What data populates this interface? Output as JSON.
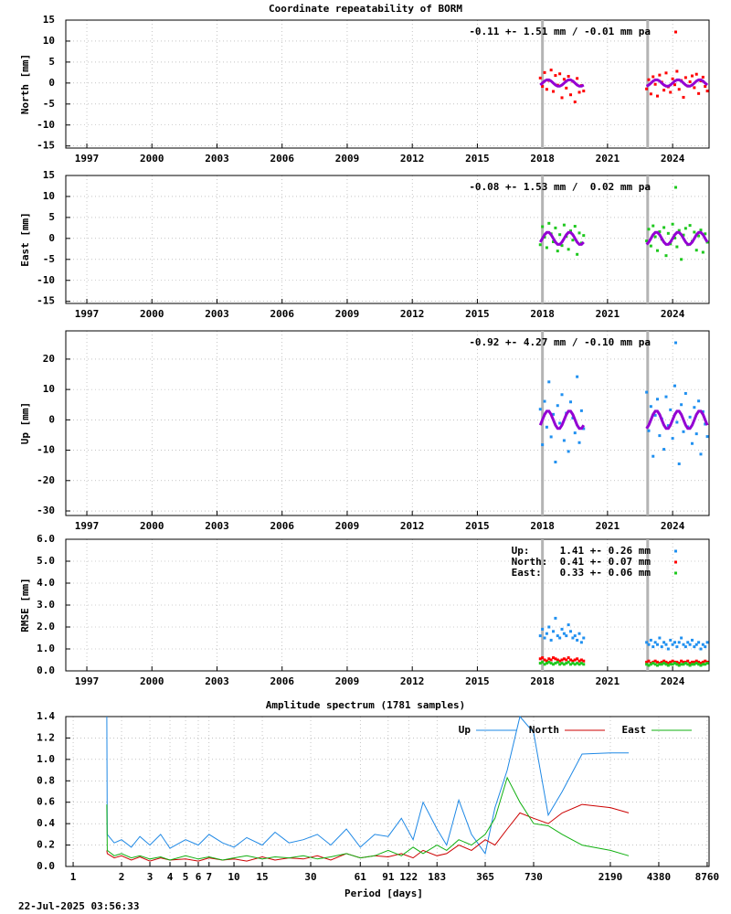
{
  "chart_data": [
    {
      "type": "scatter",
      "title": "Coordinate repeatability of BORM",
      "ylabel": "North [mm]",
      "xlim": [
        1996.03,
        2025.68
      ],
      "xticks": [
        1997,
        2000,
        2003,
        2006,
        2009,
        2012,
        2015,
        2018,
        2021,
        2024
      ],
      "ylim": [
        -15.5,
        15
      ],
      "yticks": [
        -15,
        -10,
        -5,
        0,
        5,
        10,
        15
      ],
      "grid": true,
      "vlines": [
        2018.0,
        2022.85
      ],
      "x": [
        2017.9,
        2018.0,
        2018.1,
        2018.2,
        2018.3,
        2018.4,
        2018.5,
        2018.6,
        2018.7,
        2018.8,
        2018.9,
        2019.0,
        2019.1,
        2019.2,
        2019.3,
        2019.4,
        2019.5,
        2019.6,
        2019.7,
        2019.8,
        2019.9,
        2022.8,
        2022.9,
        2023.0,
        2023.1,
        2023.2,
        2023.3,
        2023.4,
        2023.5,
        2023.6,
        2023.7,
        2023.8,
        2023.9,
        2024.0,
        2024.1,
        2024.2,
        2024.3,
        2024.4,
        2024.5,
        2024.6,
        2024.7,
        2024.8,
        2024.9,
        2025.0,
        2025.1,
        2025.2,
        2025.3,
        2025.4,
        2025.5,
        2025.6
      ],
      "series": [
        {
          "name": "-0.11 +- 1.51 mm / -0.01 mm pa",
          "color": "#ff0000",
          "values": [
            1.2,
            -0.8,
            2.5,
            -1.5,
            0.6,
            3.1,
            -2.0,
            1.8,
            -0.5,
            2.2,
            -3.5,
            0.9,
            -1.2,
            1.6,
            -2.8,
            0.4,
            -4.5,
            1.1,
            -2.2,
            -0.6,
            -1.9,
            -1.4,
            0.8,
            -2.6,
            1.5,
            -0.3,
            -3.1,
            1.9,
            0.2,
            -1.7,
            2.4,
            -0.9,
            -2.2,
            1.0,
            -0.4,
            2.8,
            -1.5,
            0.6,
            -3.4,
            1.3,
            -0.7,
            0.3,
            1.7,
            -1.1,
            2.1,
            -2.5,
            0.5,
            1.4,
            -0.8,
            -1.9
          ]
        }
      ],
      "model": {
        "color": "#9400d3",
        "values": [
          -0.47,
          0,
          0.47,
          0.76,
          0.76,
          0.47,
          0,
          -0.47,
          -0.76,
          -0.76,
          -0.47,
          0,
          0.47,
          0.76,
          0.76,
          0.47,
          0,
          -0.47,
          -0.76,
          -0.76,
          -0.47,
          -0.76,
          -0.47,
          0,
          0.47,
          0.76,
          0.76,
          0.47,
          0,
          -0.47,
          -0.76,
          -0.76,
          -0.47,
          0,
          0.47,
          0.76,
          0.76,
          0.47,
          0,
          -0.47,
          -0.76,
          -0.76,
          -0.47,
          0,
          0.47,
          0.76,
          0.76,
          0.47,
          0,
          -0.47
        ]
      }
    },
    {
      "type": "scatter",
      "ylabel": "East [mm]",
      "xlim": [
        1996.03,
        2025.68
      ],
      "xticks": [
        1997,
        2000,
        2003,
        2006,
        2009,
        2012,
        2015,
        2018,
        2021,
        2024
      ],
      "ylim": [
        -15.5,
        15
      ],
      "yticks": [
        -15,
        -10,
        -5,
        0,
        5,
        10,
        15
      ],
      "grid": true,
      "vlines": [
        2018.0,
        2022.85
      ],
      "x": [
        2017.9,
        2018.0,
        2018.1,
        2018.2,
        2018.3,
        2018.4,
        2018.5,
        2018.6,
        2018.7,
        2018.8,
        2018.9,
        2019.0,
        2019.1,
        2019.2,
        2019.3,
        2019.4,
        2019.5,
        2019.6,
        2019.7,
        2019.8,
        2019.9,
        2022.8,
        2022.9,
        2023.0,
        2023.1,
        2023.2,
        2023.3,
        2023.4,
        2023.5,
        2023.6,
        2023.7,
        2023.8,
        2023.9,
        2024.0,
        2024.1,
        2024.2,
        2024.3,
        2024.4,
        2024.5,
        2024.6,
        2024.7,
        2024.8,
        2024.9,
        2025.0,
        2025.1,
        2025.2,
        2025.3,
        2025.4,
        2025.5,
        2025.6
      ],
      "series": [
        {
          "name": "-0.08 +- 1.53 mm /  0.02 mm pa",
          "color": "#1ec81e",
          "values": [
            -1.5,
            2.8,
            0.3,
            -2.2,
            3.6,
            1.1,
            -0.8,
            2.5,
            -3.0,
            0.9,
            -1.7,
            3.2,
            0.5,
            -2.6,
            1.8,
            -0.4,
            2.9,
            -3.8,
            1.3,
            -1.1,
            0.7,
            -0.6,
            2.2,
            -1.8,
            3.0,
            0.4,
            -2.9,
            1.6,
            -0.2,
            2.6,
            -4.1,
            1.2,
            -1.3,
            3.4,
            0.1,
            -2.0,
            1.9,
            -5.0,
            0.8,
            2.4,
            -1.5,
            3.1,
            -0.7,
            1.5,
            -2.8,
            0.6,
            2.0,
            -3.3,
            1.1,
            -0.9
          ]
        }
      ],
      "model": {
        "color": "#9400d3",
        "values": [
          -0.88,
          0,
          0.88,
          1.43,
          1.43,
          0.88,
          0,
          -0.88,
          -1.43,
          -1.43,
          -0.88,
          0,
          0.88,
          1.43,
          1.43,
          0.88,
          0,
          -0.88,
          -1.43,
          -1.43,
          -0.88,
          -1.43,
          -0.88,
          0,
          0.88,
          1.43,
          1.43,
          0.88,
          0,
          -0.88,
          -1.43,
          -1.43,
          -0.88,
          0,
          0.88,
          1.43,
          1.43,
          0.88,
          0,
          -0.88,
          -1.43,
          -1.43,
          -0.88,
          0,
          0.88,
          1.43,
          1.43,
          0.88,
          0,
          -0.88
        ]
      }
    },
    {
      "type": "scatter",
      "ylabel": "Up [mm]",
      "xlim": [
        1996.03,
        2025.68
      ],
      "xticks": [
        1997,
        2000,
        2003,
        2006,
        2009,
        2012,
        2015,
        2018,
        2021,
        2024
      ],
      "ylim": [
        -31.5,
        29.3
      ],
      "yticks": [
        -30,
        -20,
        -10,
        0,
        10,
        20
      ],
      "grid": true,
      "vlines": [
        2018.0,
        2022.85
      ],
      "x": [
        2017.9,
        2018.0,
        2018.1,
        2018.2,
        2018.3,
        2018.4,
        2018.5,
        2018.6,
        2018.7,
        2018.8,
        2018.9,
        2019.0,
        2019.1,
        2019.2,
        2019.3,
        2019.4,
        2019.5,
        2019.6,
        2019.7,
        2019.8,
        2019.9,
        2022.8,
        2022.9,
        2023.0,
        2023.1,
        2023.2,
        2023.3,
        2023.4,
        2023.5,
        2023.6,
        2023.7,
        2023.8,
        2023.9,
        2024.0,
        2024.1,
        2024.2,
        2024.3,
        2024.4,
        2024.5,
        2024.6,
        2024.7,
        2024.8,
        2024.9,
        2025.0,
        2025.1,
        2025.2,
        2025.3,
        2025.4,
        2025.5,
        2025.6
      ],
      "series": [
        {
          "name": "-0.92 +- 4.27 mm / -0.10 mm pa",
          "color": "#2090f0",
          "values": [
            3.5,
            -8.2,
            6.1,
            -2.4,
            12.5,
            -5.6,
            1.8,
            -13.9,
            4.7,
            -1.1,
            8.3,
            -6.8,
            2.2,
            -10.4,
            5.9,
            0.6,
            -4.3,
            14.2,
            -7.5,
            3.0,
            -2.9,
            9.1,
            -3.6,
            4.4,
            -12.0,
            1.5,
            6.8,
            -5.2,
            0.3,
            -9.7,
            7.6,
            -1.9,
            3.3,
            -6.1,
            11.2,
            -0.8,
            -14.5,
            5.0,
            -3.9,
            8.7,
            -2.3,
            0.9,
            -7.8,
            4.1,
            -4.6,
            6.2,
            -11.3,
            2.7,
            -1.4,
            -5.5
          ]
        }
      ],
      "model": {
        "color": "#9400d3",
        "values": [
          -1.76,
          0,
          1.76,
          2.85,
          2.85,
          1.76,
          0,
          -1.76,
          -2.85,
          -2.85,
          -1.76,
          0,
          1.76,
          2.85,
          2.85,
          1.76,
          0,
          -1.76,
          -2.85,
          -2.85,
          -1.76,
          -2.85,
          -1.76,
          0,
          1.76,
          2.85,
          2.85,
          1.76,
          0,
          -1.76,
          -2.85,
          -2.85,
          -1.76,
          0,
          1.76,
          2.85,
          2.85,
          1.76,
          0,
          -1.76,
          -2.85,
          -2.85,
          -1.76,
          0,
          1.76,
          2.85,
          2.85,
          1.76,
          0,
          -1.76
        ]
      }
    },
    {
      "type": "scatter",
      "ylabel": "RMSE [mm]",
      "xlim": [
        1996.03,
        2025.68
      ],
      "xticks": [
        1997,
        2000,
        2003,
        2006,
        2009,
        2012,
        2015,
        2018,
        2021,
        2024
      ],
      "ylim": [
        0,
        6
      ],
      "yticks": [
        {
          "value": 0,
          "label": "0.0"
        },
        {
          "value": 1,
          "label": "1.0"
        },
        {
          "value": 2,
          "label": "2.0"
        },
        {
          "value": 3,
          "label": "3.0"
        },
        {
          "value": 4,
          "label": "4.0"
        },
        {
          "value": 5,
          "label": "5.0"
        },
        {
          "value": 6,
          "label": "6.0"
        }
      ],
      "grid": true,
      "vlines": [
        2018.0,
        2022.85
      ],
      "x": [
        2017.9,
        2018.0,
        2018.1,
        2018.2,
        2018.3,
        2018.4,
        2018.5,
        2018.6,
        2018.7,
        2018.8,
        2018.9,
        2019.0,
        2019.1,
        2019.2,
        2019.3,
        2019.4,
        2019.5,
        2019.6,
        2019.7,
        2019.8,
        2019.9,
        2022.8,
        2022.9,
        2023.0,
        2023.1,
        2023.2,
        2023.3,
        2023.4,
        2023.5,
        2023.6,
        2023.7,
        2023.8,
        2023.9,
        2024.0,
        2024.1,
        2024.2,
        2024.3,
        2024.4,
        2024.5,
        2024.6,
        2024.7,
        2024.8,
        2024.9,
        2025.0,
        2025.1,
        2025.2,
        2025.3,
        2025.4,
        2025.5,
        2025.6
      ],
      "series": [
        {
          "name": "Up:     1.41 +- 0.26 mm",
          "color": "#2090f0",
          "values": [
            1.6,
            1.9,
            1.5,
            1.7,
            2.0,
            1.4,
            1.8,
            2.4,
            1.6,
            1.5,
            1.9,
            1.7,
            1.6,
            2.1,
            1.8,
            1.5,
            1.6,
            1.4,
            1.7,
            1.3,
            1.5,
            1.3,
            1.2,
            1.4,
            1.1,
            1.3,
            1.2,
            1.5,
            1.1,
            1.3,
            1.2,
            1.0,
            1.4,
            1.2,
            1.3,
            1.1,
            1.3,
            1.5,
            1.2,
            1.1,
            1.3,
            1.2,
            1.4,
            1.1,
            1.2,
            1.3,
            1.0,
            1.2,
            1.1,
            1.3
          ]
        },
        {
          "name": "North:  0.41 +- 0.07 mm",
          "color": "#ff0000",
          "values": [
            0.55,
            0.6,
            0.5,
            0.45,
            0.55,
            0.5,
            0.6,
            0.55,
            0.5,
            0.45,
            0.5,
            0.55,
            0.5,
            0.6,
            0.5,
            0.45,
            0.5,
            0.55,
            0.45,
            0.5,
            0.45,
            0.4,
            0.45,
            0.35,
            0.4,
            0.45,
            0.4,
            0.35,
            0.4,
            0.45,
            0.4,
            0.35,
            0.4,
            0.45,
            0.4,
            0.4,
            0.35,
            0.45,
            0.4,
            0.4,
            0.45,
            0.35,
            0.4,
            0.4,
            0.45,
            0.4,
            0.35,
            0.4,
            0.45,
            0.4
          ]
        },
        {
          "name": "East:   0.33 +- 0.06 mm",
          "color": "#1ec81e",
          "values": [
            0.35,
            0.4,
            0.3,
            0.35,
            0.4,
            0.35,
            0.3,
            0.35,
            0.4,
            0.3,
            0.35,
            0.3,
            0.35,
            0.4,
            0.3,
            0.35,
            0.3,
            0.35,
            0.3,
            0.35,
            0.3,
            0.3,
            0.25,
            0.3,
            0.35,
            0.3,
            0.25,
            0.3,
            0.3,
            0.35,
            0.3,
            0.25,
            0.3,
            0.3,
            0.35,
            0.3,
            0.25,
            0.3,
            0.3,
            0.35,
            0.3,
            0.25,
            0.3,
            0.3,
            0.35,
            0.3,
            0.25,
            0.3,
            0.3,
            0.35
          ]
        }
      ]
    },
    {
      "type": "line",
      "title": "Amplitude spectrum (1781 samples)",
      "xlabel": "Period [days]",
      "xlog": true,
      "xlim": [
        0.9,
        9000
      ],
      "xticks": [
        1,
        2,
        3,
        4,
        5,
        6,
        7,
        10,
        15,
        30,
        61,
        91,
        122,
        183,
        365,
        730,
        2190,
        4380,
        8760
      ],
      "ylim": [
        0,
        1.4
      ],
      "yticks": [
        {
          "value": 0,
          "label": "0.0"
        },
        {
          "value": 0.2,
          "label": "0.2"
        },
        {
          "value": 0.4,
          "label": "0.4"
        },
        {
          "value": 0.6,
          "label": "0.6"
        },
        {
          "value": 0.8,
          "label": "0.8"
        },
        {
          "value": 1.0,
          "label": "1.0"
        },
        {
          "value": 1.2,
          "label": "1.2"
        },
        {
          "value": 1.4,
          "label": "1.4"
        }
      ],
      "grid": true,
      "x": [
        1.62,
        1.63,
        1.8,
        2.0,
        2.3,
        2.6,
        3,
        3.5,
        4,
        5,
        6,
        7,
        8.5,
        10,
        12,
        15,
        18,
        22,
        27,
        33,
        40,
        50,
        61,
        75,
        91,
        110,
        130,
        150,
        183,
        210,
        250,
        300,
        365,
        420,
        500,
        600,
        730,
        900,
        1100,
        1460,
        2190,
        2850
      ],
      "series": [
        {
          "name": "Up",
          "color": "#1e88e5",
          "values": [
            1.4,
            0.3,
            0.22,
            0.25,
            0.18,
            0.28,
            0.2,
            0.3,
            0.17,
            0.25,
            0.2,
            0.3,
            0.22,
            0.18,
            0.27,
            0.2,
            0.32,
            0.22,
            0.25,
            0.3,
            0.2,
            0.35,
            0.18,
            0.3,
            0.28,
            0.45,
            0.25,
            0.6,
            0.35,
            0.2,
            0.62,
            0.3,
            0.12,
            0.55,
            0.9,
            1.4,
            1.25,
            0.48,
            0.7,
            1.05,
            1.06,
            1.06
          ]
        },
        {
          "name": "North",
          "color": "#cc0000",
          "values": [
            0.15,
            0.12,
            0.08,
            0.1,
            0.06,
            0.09,
            0.05,
            0.08,
            0.06,
            0.07,
            0.05,
            0.08,
            0.06,
            0.07,
            0.05,
            0.09,
            0.06,
            0.08,
            0.07,
            0.1,
            0.06,
            0.12,
            0.08,
            0.1,
            0.09,
            0.12,
            0.08,
            0.15,
            0.1,
            0.12,
            0.2,
            0.15,
            0.25,
            0.2,
            0.35,
            0.5,
            0.45,
            0.4,
            0.5,
            0.58,
            0.55,
            0.5
          ]
        },
        {
          "name": "East",
          "color": "#10b010",
          "values": [
            0.58,
            0.15,
            0.1,
            0.12,
            0.08,
            0.1,
            0.07,
            0.09,
            0.06,
            0.1,
            0.07,
            0.09,
            0.06,
            0.08,
            0.1,
            0.07,
            0.09,
            0.08,
            0.1,
            0.07,
            0.09,
            0.12,
            0.08,
            0.1,
            0.15,
            0.1,
            0.18,
            0.12,
            0.2,
            0.15,
            0.25,
            0.2,
            0.3,
            0.45,
            0.83,
            0.6,
            0.4,
            0.38,
            0.3,
            0.2,
            0.15,
            0.1
          ]
        }
      ]
    }
  ],
  "timestamp": "22-Jul-2025 03:56:33"
}
